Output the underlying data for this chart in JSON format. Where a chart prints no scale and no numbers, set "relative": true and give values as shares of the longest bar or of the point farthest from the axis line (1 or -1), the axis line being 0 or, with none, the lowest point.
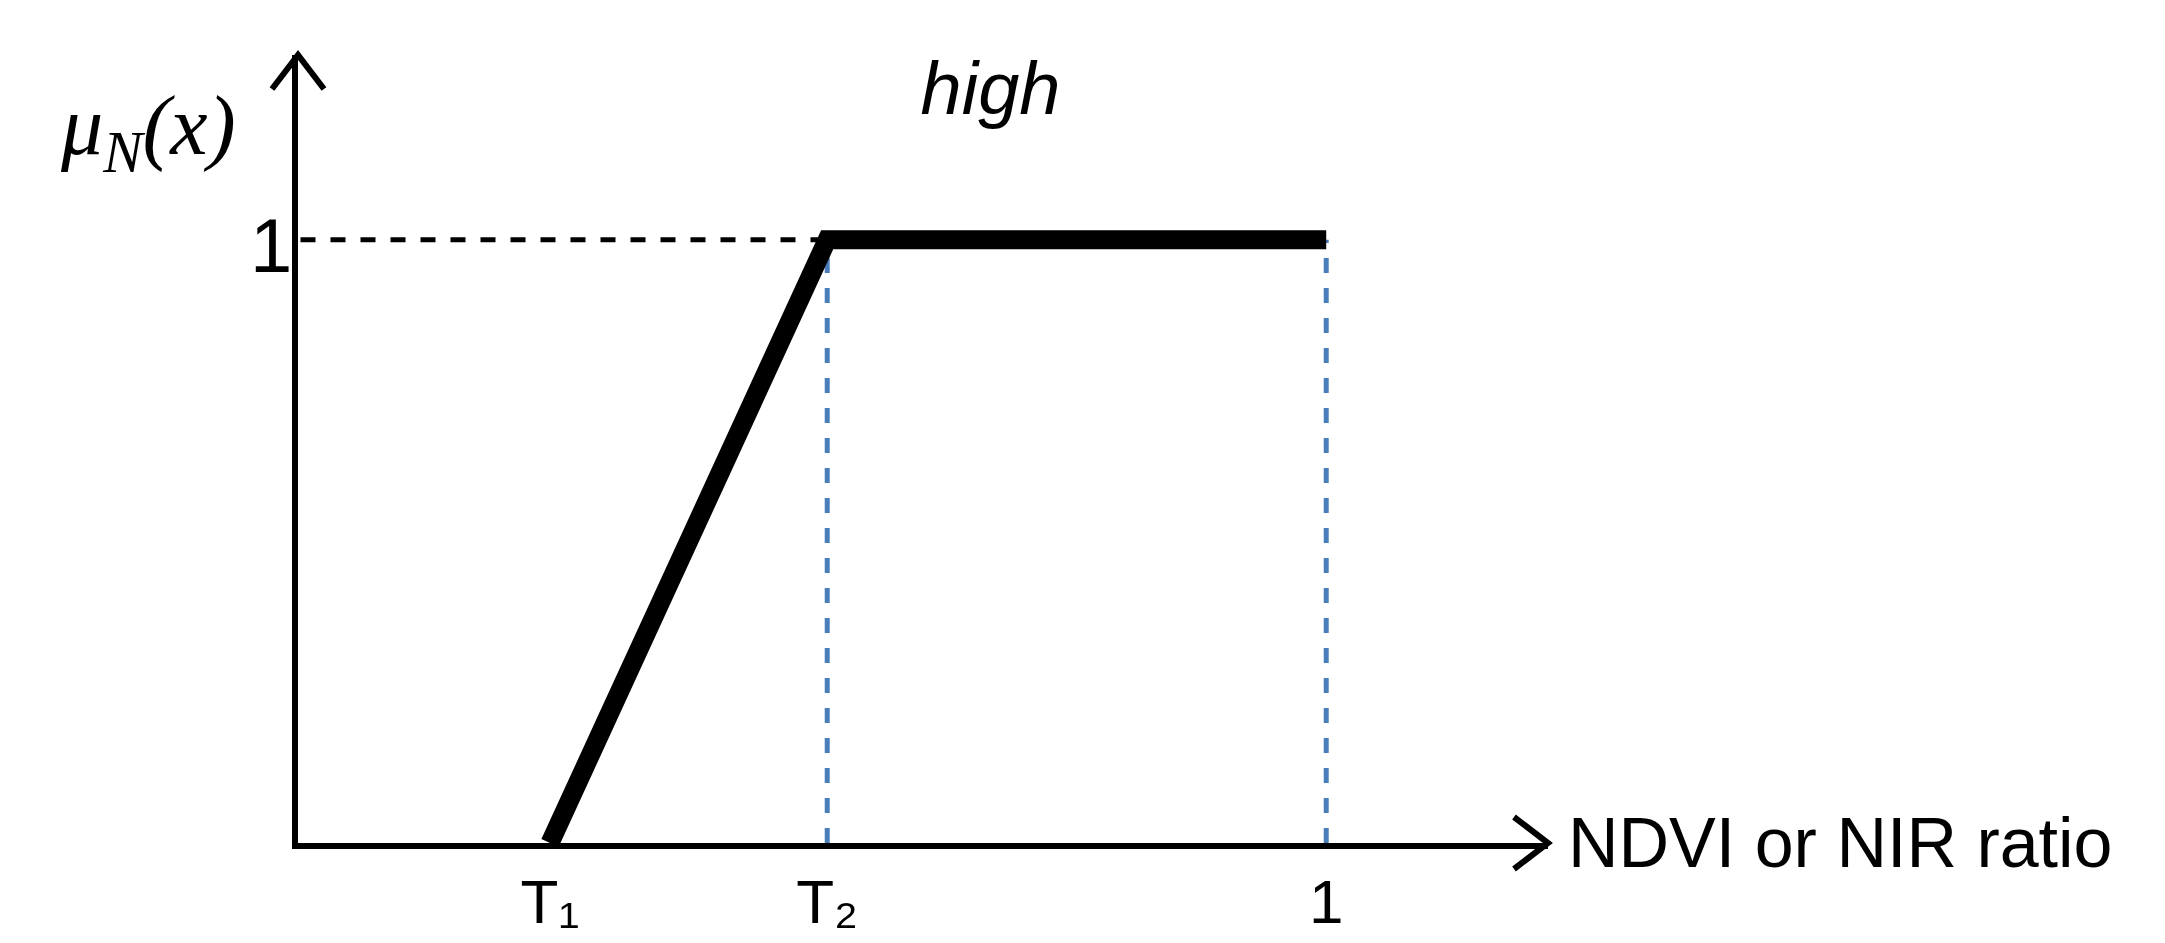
{
  "chart_data": {
    "type": "line",
    "title": "high",
    "ylabel": "μ$_{N}$(x)",
    "xlabel": "NDVI or NIR ratio",
    "relative": true,
    "categories": [
      null,
      null,
      null,
      null,
      "T₁",
      null,
      null,
      null,
      null,
      "T₂",
      null,
      null,
      null,
      null,
      null,
      null,
      null,
      null,
      "1",
      null,
      null,
      null,
      null
    ],
    "series": [
      {
        "color": "#000000",
        "values": [
          null,
          null,
          null,
          null,
          0,
          0.2,
          0.4,
          0.6,
          0.8,
          1,
          1,
          1,
          1,
          1,
          1,
          1,
          1,
          1,
          1,
          null,
          null,
          null,
          null
        ]
      }
    ],
    "ref_lines": [
      {
        "axis": "y",
        "value": 1,
        "label": "1",
        "color": "#000000",
        "line_style": "dashed"
      },
      {
        "axis": "x",
        "value": "T₂",
        "color": "#4a7ebb",
        "line_style": "dashed"
      },
      {
        "axis": "x",
        "value": "1",
        "color": "#4a7ebb",
        "line_style": "dashed"
      }
    ],
    "grid": false,
    "marker": "none",
    "line_style": "solid"
  }
}
